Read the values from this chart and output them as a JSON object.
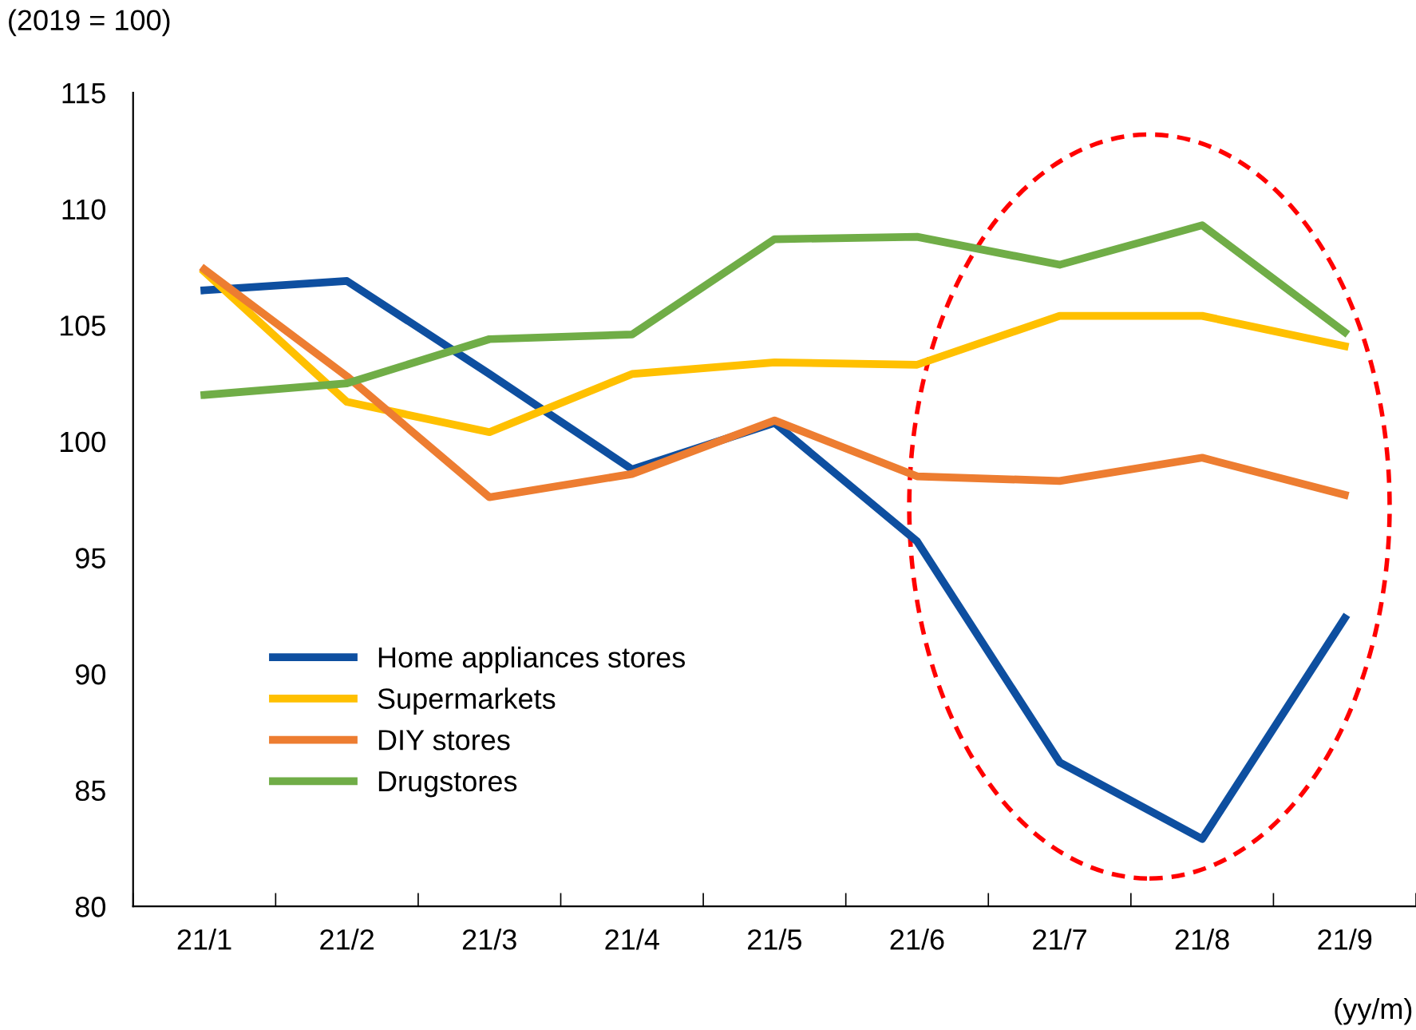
{
  "chart_data": {
    "type": "line",
    "ylabel": "(2019 = 100)",
    "xlabel": "(yy/m)",
    "categories": [
      "21/1",
      "21/2",
      "21/3",
      "21/4",
      "21/5",
      "21/6",
      "21/7",
      "21/8",
      "21/9"
    ],
    "series": [
      {
        "name": "Home appliances stores",
        "color": "#0e4fa0",
        "values": [
          106.5,
          106.9,
          102.9,
          98.8,
          100.8,
          95.7,
          86.2,
          82.9,
          92.4
        ]
      },
      {
        "name": "Supermarkets",
        "color": "#ffc000",
        "values": [
          107.3,
          101.7,
          100.4,
          102.9,
          103.4,
          103.3,
          105.4,
          105.4,
          104.1
        ]
      },
      {
        "name": "DIY stores",
        "color": "#ed7d31",
        "values": [
          107.4,
          102.8,
          97.6,
          98.6,
          100.9,
          98.5,
          98.3,
          99.3,
          97.7
        ]
      },
      {
        "name": "Drugstores",
        "color": "#70ad47",
        "values": [
          102.0,
          102.5,
          104.4,
          104.6,
          108.7,
          108.8,
          107.6,
          109.3,
          104.7
        ]
      }
    ],
    "ylim": [
      80,
      115
    ],
    "yticks": [
      80,
      85,
      90,
      95,
      100,
      105,
      110,
      115
    ],
    "grid": false,
    "legend": "left",
    "marker": "none",
    "line_style": "solid"
  }
}
